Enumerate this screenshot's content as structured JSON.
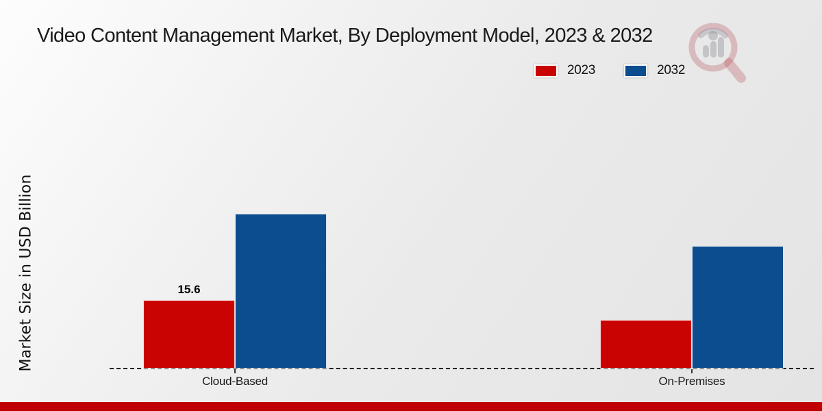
{
  "title": "Video Content Management Market, By Deployment Model, 2023 & 2032",
  "ylabel": "Market Size in USD Billion",
  "legend": {
    "items": [
      {
        "label": "2023",
        "color": "#c90202"
      },
      {
        "label": "2032",
        "color": "#0b4d8e"
      }
    ]
  },
  "chart_data": {
    "type": "bar",
    "categories": [
      "Cloud-Based",
      "On-Premises"
    ],
    "series": [
      {
        "name": "2023",
        "color": "#c90202",
        "values": [
          15.6,
          11.1
        ]
      },
      {
        "name": "2032",
        "color": "#0b4d8e",
        "values": [
          35.3,
          27.9
        ]
      }
    ],
    "annotations": [
      {
        "series": "2023",
        "category": "Cloud-Based",
        "text": "15.6"
      }
    ],
    "title": "Video Content Management Market, By Deployment Model, 2023 & 2032",
    "xlabel": "",
    "ylabel": "Market Size in USD Billion",
    "ylim": [
      0,
      40
    ],
    "grid": false,
    "legend_position": "top-right",
    "baseline_style": "dashed"
  },
  "colors": {
    "bar_2023": "#c90202",
    "bar_2032": "#0b4d8e",
    "footer_band": "#c00000",
    "title_text": "#1a1a1a"
  },
  "watermark": {
    "name": "market-research-future-logo"
  }
}
